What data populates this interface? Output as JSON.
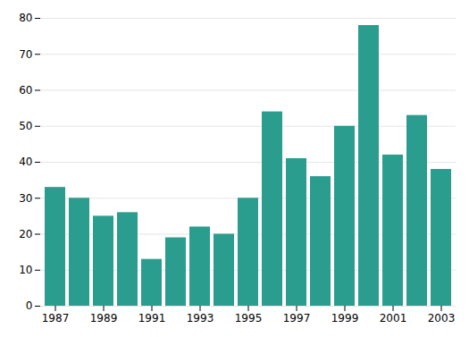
{
  "chart_data": {
    "type": "bar",
    "categories": [
      "1987",
      null,
      "1989",
      null,
      "1991",
      null,
      "1993",
      null,
      "1995",
      null,
      "1997",
      null,
      "1999",
      null,
      "2001",
      null,
      "2003"
    ],
    "values": [
      33,
      30,
      25,
      26,
      13,
      19,
      22,
      20,
      30,
      54,
      41,
      36,
      50,
      78,
      42,
      53,
      38
    ],
    "color": "#2a9d8f",
    "ylim": [
      0,
      80
    ],
    "yticks": [
      0,
      10,
      20,
      30,
      40,
      50,
      60,
      70,
      80
    ],
    "grid": true
  }
}
